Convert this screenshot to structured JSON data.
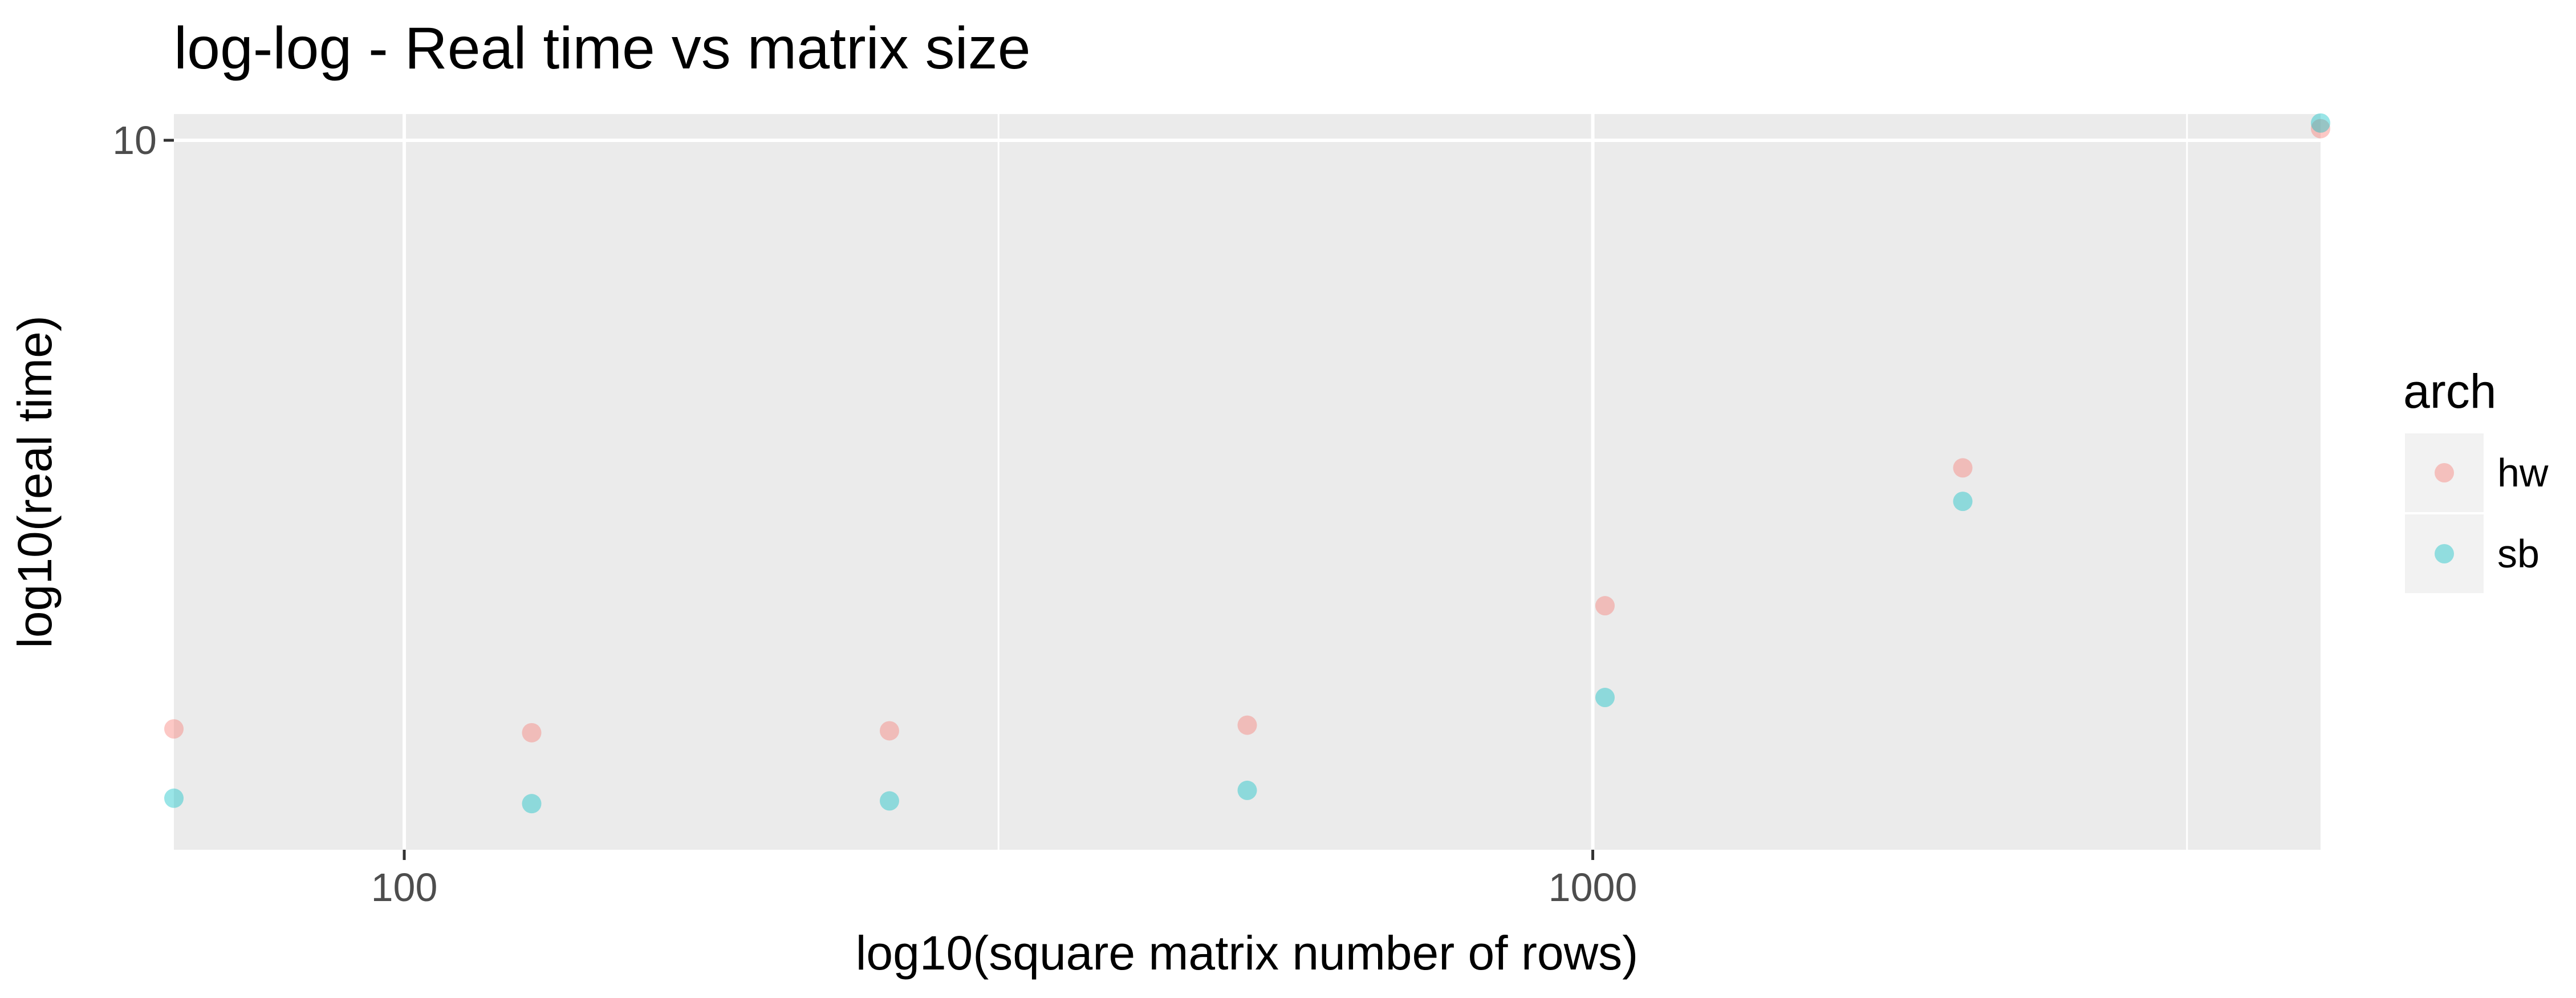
{
  "chart_data": {
    "type": "scatter",
    "title": "log-log - Real time vs matrix size",
    "xlabel": "log10(square matrix number of rows)",
    "ylabel": "log10(real time)",
    "x_scale": "log10",
    "y_scale": "log10",
    "xlim": [
      64,
      4096
    ],
    "ylim": [
      0.29,
      11.4
    ],
    "x_ticks": [
      {
        "value": 100,
        "label": "100"
      },
      {
        "value": 1000,
        "label": "1000"
      }
    ],
    "x_minor_ticks": [
      316.23,
      3162.28
    ],
    "y_ticks": [
      {
        "value": 10,
        "label": "10"
      }
    ],
    "legend": {
      "title": "arch",
      "position": "right",
      "entries": [
        {
          "name": "hw",
          "color": "#F8766D"
        },
        {
          "name": "sb",
          "color": "#00BFC4"
        }
      ]
    },
    "series": [
      {
        "name": "hw",
        "color": "#F8766D",
        "x": [
          64,
          128,
          256,
          512,
          1024,
          2048,
          4096
        ],
        "y": [
          0.53,
          0.52,
          0.525,
          0.54,
          0.98,
          1.95,
          10.6
        ]
      },
      {
        "name": "sb",
        "color": "#00BFC4",
        "x": [
          64,
          128,
          256,
          512,
          1024,
          2048,
          4096
        ],
        "y": [
          0.375,
          0.365,
          0.37,
          0.39,
          0.62,
          1.65,
          10.9
        ]
      }
    ],
    "grid": true
  }
}
